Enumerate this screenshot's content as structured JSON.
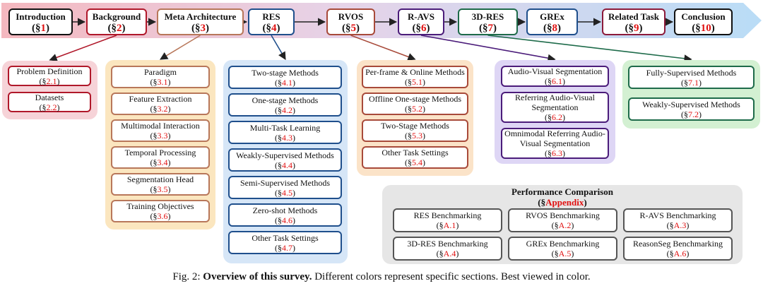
{
  "top_sections": [
    {
      "title": "Introduction",
      "sec": "1",
      "color": "#111111"
    },
    {
      "title": "Background",
      "sec": "2",
      "color": "#b0182a"
    },
    {
      "title": "Meta Architecture",
      "sec": "3",
      "color": "#b8775a"
    },
    {
      "title": "RES",
      "sec": "4",
      "color": "#1f4f8c"
    },
    {
      "title": "RVOS",
      "sec": "5",
      "color": "#a84a3a"
    },
    {
      "title": "R-AVS",
      "sec": "6",
      "color": "#4b1c7a"
    },
    {
      "title": "3D-RES",
      "sec": "7",
      "color": "#1e6b4a"
    },
    {
      "title": "GREx",
      "sec": "8",
      "color": "#1f4f8c"
    },
    {
      "title": "Related Task",
      "sec": "9",
      "color": "#8c1a3a"
    },
    {
      "title": "Conclusion",
      "sec": "10",
      "color": "#111111"
    }
  ],
  "groups": {
    "background": {
      "color": "#f6d3d8",
      "border": "#b0182a",
      "items": [
        {
          "t": "Problem Definition",
          "n": "2.1"
        },
        {
          "t": "Datasets",
          "n": "2.2"
        }
      ]
    },
    "meta": {
      "color": "#fbe6bf",
      "border": "#b8775a",
      "items": [
        {
          "t": "Paradigm",
          "n": "3.1"
        },
        {
          "t": "Feature Extraction",
          "n": "3.2"
        },
        {
          "t": "Multimodal Interaction",
          "n": "3.3"
        },
        {
          "t": "Temporal Processing",
          "n": "3.4"
        },
        {
          "t": "Segmentation Head",
          "n": "3.5"
        },
        {
          "t": "Training Objectives",
          "n": "3.6"
        }
      ]
    },
    "res": {
      "color": "#d6e6f7",
      "border": "#1f4f8c",
      "items": [
        {
          "t": "Two-stage Methods",
          "n": "4.1"
        },
        {
          "t": "One-stage Methods",
          "n": "4.2"
        },
        {
          "t": "Multi-Task Learning",
          "n": "4.3"
        },
        {
          "t": "Weakly-Supervised Methods",
          "n": "4.4"
        },
        {
          "t": "Semi-Supervised Methods",
          "n": "4.5"
        },
        {
          "t": "Zero-shot Methods",
          "n": "4.6"
        },
        {
          "t": "Other Task Settings",
          "n": "4.7"
        }
      ]
    },
    "rvos": {
      "color": "#fbe3c8",
      "border": "#a84a3a",
      "items": [
        {
          "t": "Per-frame & Online Methods",
          "n": "5.1"
        },
        {
          "t": "Offline One-stage Methods",
          "n": "5.2"
        },
        {
          "t": "Two-Stage Methods",
          "n": "5.3"
        },
        {
          "t": "Other Task Settings",
          "n": "5.4"
        }
      ]
    },
    "ravs": {
      "color": "#ded6f5",
      "border": "#4b1c7a",
      "items": [
        {
          "t": "Audio-Visual Segmentation",
          "n": "6.1"
        },
        {
          "t": "Referring Audio-Visual Segmentation",
          "n": "6.2"
        },
        {
          "t": "Omnimodal Referring Audio-Visual Segmentation",
          "n": "6.3"
        }
      ]
    },
    "res3d": {
      "color": "#d3f0d2",
      "border": "#1e6b4a",
      "items": [
        {
          "t": "Fully-Supervised Methods",
          "n": "7.1"
        },
        {
          "t": "Weakly-Supervised Methods",
          "n": "7.2"
        }
      ]
    }
  },
  "performance": {
    "title": "Performance Comparison",
    "sec": "Appendix",
    "items": [
      {
        "t": "RES Benchmarking",
        "n": "A.1"
      },
      {
        "t": "RVOS Benchmarking",
        "n": "A.2"
      },
      {
        "t": "R-AVS Benchmarking",
        "n": "A.3"
      },
      {
        "t": "3D-RES Benchmarking",
        "n": "A.4"
      },
      {
        "t": "GREx Benchmarking",
        "n": "A.5"
      },
      {
        "t": "ReasonSeg Benchmarking",
        "n": "A.6"
      }
    ]
  },
  "caption": {
    "prefix": "Fig. 2: ",
    "bold": "Overview of this survey.",
    "rest": " Different colors represent specific sections. Best viewed in color."
  }
}
